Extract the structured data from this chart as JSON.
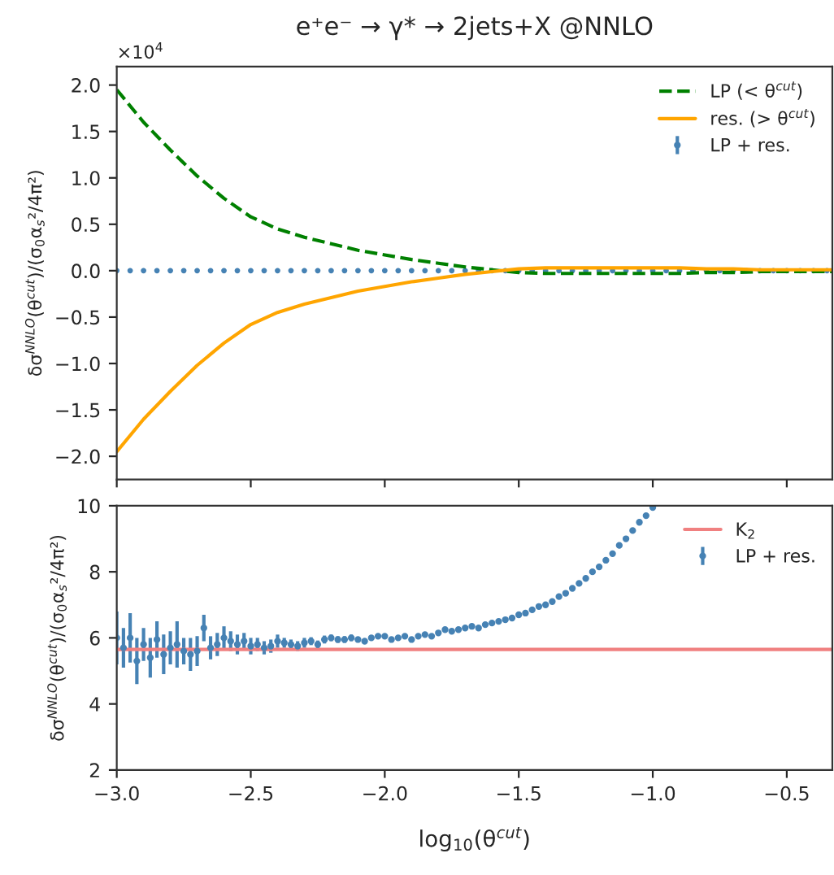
{
  "chart_data": [
    {
      "type": "line",
      "title": "e⁺e⁻ → γ* → 2jets+X @NNLO",
      "ylabel": "δσ$^{NNLO}$(θ$^{cut}$)/(σ$_{0}$α$_{s}$²/4π²)",
      "annotations": [
        "×10$^{4}$"
      ],
      "xlim": [
        -3.0,
        -0.33
      ],
      "ylim": [
        -2.25,
        2.2
      ],
      "yticks": [
        {
          "value": -2.0,
          "label": "−2.0"
        },
        {
          "value": -1.5,
          "label": "−1.5"
        },
        {
          "value": -1.0,
          "label": "−1.0"
        },
        {
          "value": -0.5,
          "label": "−0.5"
        },
        {
          "value": 0,
          "label": "0.0"
        },
        {
          "value": 0.5,
          "label": "0.5"
        },
        {
          "value": 1.0,
          "label": "1.0"
        },
        {
          "value": 1.5,
          "label": "1.5"
        },
        {
          "value": 2.0,
          "label": "2.0"
        }
      ],
      "tick_labels": "y",
      "legend": "top right",
      "grid": false,
      "series": [
        {
          "name": "LP (< θ$^{cut}$)",
          "line_style": "dashed",
          "color": "#008000",
          "x": [
            -3.0,
            -2.9,
            -2.8,
            -2.7,
            -2.6,
            -2.5,
            -2.4,
            -2.3,
            -2.2,
            -2.1,
            -2.0,
            -1.9,
            -1.8,
            -1.7,
            -1.6,
            -1.5,
            -1.4,
            -1.3,
            -1.2,
            -1.1,
            -1.0,
            -0.9,
            -0.8,
            -0.7,
            -0.6,
            -0.5,
            -0.4,
            -0.33
          ],
          "values": [
            1.95,
            1.6,
            1.3,
            1.02,
            0.78,
            0.58,
            0.45,
            0.36,
            0.29,
            0.22,
            0.17,
            0.12,
            0.08,
            0.04,
            0.01,
            -0.02,
            -0.03,
            -0.03,
            -0.03,
            -0.03,
            -0.03,
            -0.03,
            -0.02,
            -0.02,
            -0.01,
            -0.01,
            -0.01,
            -0.01
          ]
        },
        {
          "name": "res. (> θ$^{cut}$)",
          "line_style": "solid",
          "color": "#ffa500",
          "x": [
            -3.0,
            -2.9,
            -2.8,
            -2.7,
            -2.6,
            -2.5,
            -2.4,
            -2.3,
            -2.2,
            -2.1,
            -2.0,
            -1.9,
            -1.8,
            -1.7,
            -1.6,
            -1.5,
            -1.4,
            -1.3,
            -1.2,
            -1.1,
            -1.0,
            -0.9,
            -0.8,
            -0.7,
            -0.6,
            -0.5,
            -0.4,
            -0.33
          ],
          "values": [
            -1.95,
            -1.6,
            -1.3,
            -1.02,
            -0.78,
            -0.58,
            -0.45,
            -0.36,
            -0.29,
            -0.22,
            -0.17,
            -0.12,
            -0.08,
            -0.04,
            -0.01,
            0.02,
            0.03,
            0.03,
            0.03,
            0.03,
            0.03,
            0.03,
            0.02,
            0.02,
            0.01,
            0.01,
            0.01,
            0.01
          ]
        },
        {
          "name": "LP + res.",
          "type": "scatter",
          "marker": "circle",
          "color": "#4682b4",
          "x": [
            -3.0,
            -2.95,
            -2.9,
            -2.85,
            -2.8,
            -2.75,
            -2.7,
            -2.65,
            -2.6,
            -2.55,
            -2.5,
            -2.45,
            -2.4,
            -2.35,
            -2.3,
            -2.25,
            -2.2,
            -2.15,
            -2.1,
            -2.05,
            -2.0,
            -1.95,
            -1.9,
            -1.85,
            -1.8,
            -1.75,
            -1.7,
            -1.65,
            -1.6,
            -1.55,
            -1.5,
            -1.45,
            -1.4,
            -1.35,
            -1.3,
            -1.25,
            -1.2,
            -1.15,
            -1.1,
            -1.05,
            -1.0,
            -0.95,
            -0.9,
            -0.85,
            -0.8,
            -0.75,
            -0.7,
            -0.65,
            -0.6,
            -0.55,
            -0.5,
            -0.45,
            -0.4,
            -0.35
          ],
          "values": [
            0,
            0,
            0,
            0,
            0,
            0,
            0,
            0,
            0,
            0,
            0,
            0,
            0,
            0,
            0,
            0,
            0,
            0,
            0,
            0,
            0,
            0,
            0,
            0,
            0,
            0,
            0,
            0,
            0,
            0,
            0,
            0,
            0,
            0,
            0,
            0,
            0,
            0,
            0,
            0,
            0,
            0,
            0,
            0,
            0,
            0,
            0,
            0,
            0,
            0,
            0,
            0,
            0,
            0
          ]
        }
      ]
    },
    {
      "type": "scatter",
      "xlabel": "log$_{10}$(θ$^{cut}$)",
      "ylabel": "δσ$^{NNLO}$(θ$^{cut}$)/(σ$_{0}$α$_{s}$²/4π²)",
      "xlim": [
        -3.0,
        -0.33
      ],
      "ylim": [
        2,
        10
      ],
      "xticks": [
        {
          "value": -3.0,
          "label": "−3.0"
        },
        {
          "value": -2.5,
          "label": "−2.5"
        },
        {
          "value": -2.0,
          "label": "−2.0"
        },
        {
          "value": -1.5,
          "label": "−1.5"
        },
        {
          "value": -1.0,
          "label": "−1.0"
        },
        {
          "value": -0.5,
          "label": "−0.5"
        }
      ],
      "yticks": [
        2,
        4,
        6,
        8,
        10
      ],
      "legend": "top right",
      "grid": false,
      "ref_lines": [
        {
          "axis": "y",
          "value": 5.65,
          "label": "K$_{2}$",
          "color": "#f08080"
        }
      ],
      "series": [
        {
          "name": "LP + res.",
          "marker": "circle",
          "color": "#4682b4",
          "x": [
            -3.0,
            -2.975,
            -2.95,
            -2.925,
            -2.9,
            -2.875,
            -2.85,
            -2.825,
            -2.8,
            -2.775,
            -2.75,
            -2.725,
            -2.7,
            -2.675,
            -2.65,
            -2.625,
            -2.6,
            -2.575,
            -2.55,
            -2.525,
            -2.5,
            -2.475,
            -2.45,
            -2.425,
            -2.4,
            -2.375,
            -2.35,
            -2.325,
            -2.3,
            -2.275,
            -2.25,
            -2.225,
            -2.2,
            -2.175,
            -2.15,
            -2.125,
            -2.1,
            -2.075,
            -2.05,
            -2.025,
            -2.0,
            -1.975,
            -1.95,
            -1.925,
            -1.9,
            -1.875,
            -1.85,
            -1.825,
            -1.8,
            -1.775,
            -1.75,
            -1.725,
            -1.7,
            -1.675,
            -1.65,
            -1.625,
            -1.6,
            -1.575,
            -1.55,
            -1.525,
            -1.5,
            -1.475,
            -1.45,
            -1.425,
            -1.4,
            -1.375,
            -1.35,
            -1.325,
            -1.3,
            -1.275,
            -1.25,
            -1.225,
            -1.2,
            -1.175,
            -1.15,
            -1.125,
            -1.1,
            -1.075,
            -1.05,
            -1.025,
            -1.0
          ],
          "values": [
            6.0,
            5.7,
            6.0,
            5.3,
            5.8,
            5.4,
            5.95,
            5.5,
            5.7,
            5.8,
            5.6,
            5.5,
            5.6,
            6.3,
            5.7,
            5.8,
            6.0,
            5.9,
            5.8,
            5.9,
            5.75,
            5.8,
            5.7,
            5.75,
            5.9,
            5.85,
            5.8,
            5.75,
            5.85,
            5.9,
            5.8,
            5.95,
            6.0,
            5.95,
            5.95,
            6.0,
            5.95,
            5.9,
            6.0,
            6.05,
            6.05,
            5.95,
            6.0,
            6.05,
            5.95,
            6.05,
            6.1,
            6.05,
            6.15,
            6.25,
            6.2,
            6.25,
            6.3,
            6.35,
            6.3,
            6.4,
            6.45,
            6.5,
            6.55,
            6.6,
            6.7,
            6.75,
            6.85,
            6.95,
            7.0,
            7.1,
            7.25,
            7.35,
            7.5,
            7.65,
            7.8,
            8.0,
            8.15,
            8.35,
            8.55,
            8.8,
            9.0,
            9.25,
            9.5,
            9.7,
            9.95
          ],
          "errors": [
            0.8,
            0.6,
            0.75,
            0.7,
            0.5,
            0.6,
            0.55,
            0.6,
            0.5,
            0.7,
            0.4,
            0.5,
            0.45,
            0.4,
            0.35,
            0.35,
            0.35,
            0.3,
            0.3,
            0.25,
            0.25,
            0.2,
            0.2,
            0.2,
            0.2,
            0.15,
            0.15,
            0.15,
            0.15,
            0.12,
            0.12,
            0.12,
            0.1,
            0.1,
            0.1,
            0.1,
            0.08,
            0.08,
            0.08,
            0.06,
            0.06,
            0.05,
            0.05,
            0.05,
            0.04,
            0.04,
            0.04,
            null,
            null,
            null,
            null,
            null,
            null,
            null,
            null,
            null,
            null,
            null,
            null,
            null,
            null,
            null,
            null,
            null,
            null,
            null,
            null,
            null,
            null,
            null,
            null,
            null,
            null,
            null,
            null,
            null,
            null,
            null,
            null,
            null,
            null
          ]
        }
      ]
    }
  ]
}
